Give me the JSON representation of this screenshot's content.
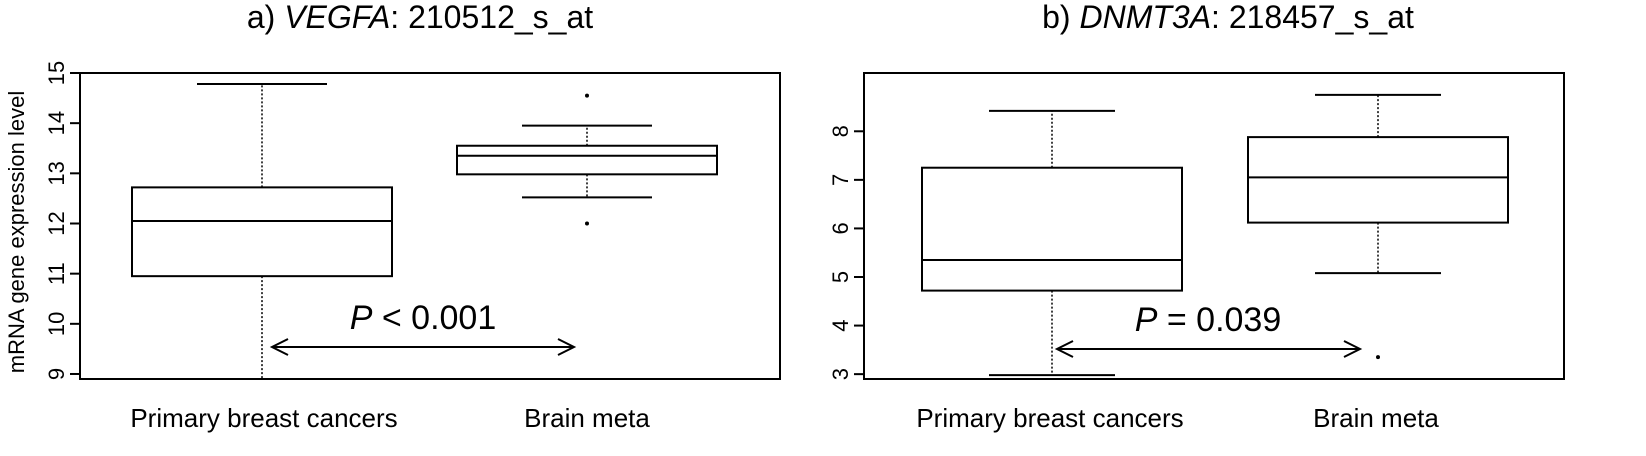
{
  "shared_ylabel": "mRNA gene expression level",
  "chart_data": [
    {
      "type": "boxplot",
      "title_prefix": "a) ",
      "title_gene": "VEGFA",
      "title_suffix": ": 210512_s_at",
      "ylabel": "mRNA gene expression level",
      "categories": [
        "Primary breast cancers",
        "Brain meta"
      ],
      "yticks": [
        "9",
        "10",
        "11",
        "12",
        "13",
        "14",
        "15"
      ],
      "ylim": [
        8.9,
        15.0
      ],
      "grid": false,
      "boxes": [
        {
          "category": "Primary breast cancers",
          "whisker_low": 8.9,
          "q1": 10.95,
          "median": 12.05,
          "q3": 12.72,
          "whisker_high": 14.78,
          "outliers": []
        },
        {
          "category": "Brain meta",
          "whisker_low": 12.52,
          "q1": 12.98,
          "median": 13.35,
          "q3": 13.55,
          "whisker_high": 13.95,
          "outliers": [
            14.55,
            12.0
          ]
        }
      ],
      "annotation": {
        "p_label": "P",
        "p_text": " < 0.001"
      }
    },
    {
      "type": "boxplot",
      "title_prefix": "b) ",
      "title_gene": "DNMT3A",
      "title_suffix": ": 218457_s_at",
      "ylabel": "",
      "categories": [
        "Primary breast cancers",
        "Brain meta"
      ],
      "yticks": [
        "3",
        "4",
        "5",
        "6",
        "7",
        "8"
      ],
      "ylim": [
        2.9,
        9.2
      ],
      "grid": false,
      "boxes": [
        {
          "category": "Primary breast cancers",
          "whisker_low": 2.98,
          "q1": 4.72,
          "median": 5.35,
          "q3": 7.25,
          "whisker_high": 8.42,
          "outliers": []
        },
        {
          "category": "Brain meta",
          "whisker_low": 5.08,
          "q1": 6.12,
          "median": 7.05,
          "q3": 7.88,
          "whisker_high": 8.75,
          "outliers": [
            3.35
          ]
        }
      ],
      "annotation": {
        "p_label": "P",
        "p_text": " = 0.039"
      }
    }
  ]
}
